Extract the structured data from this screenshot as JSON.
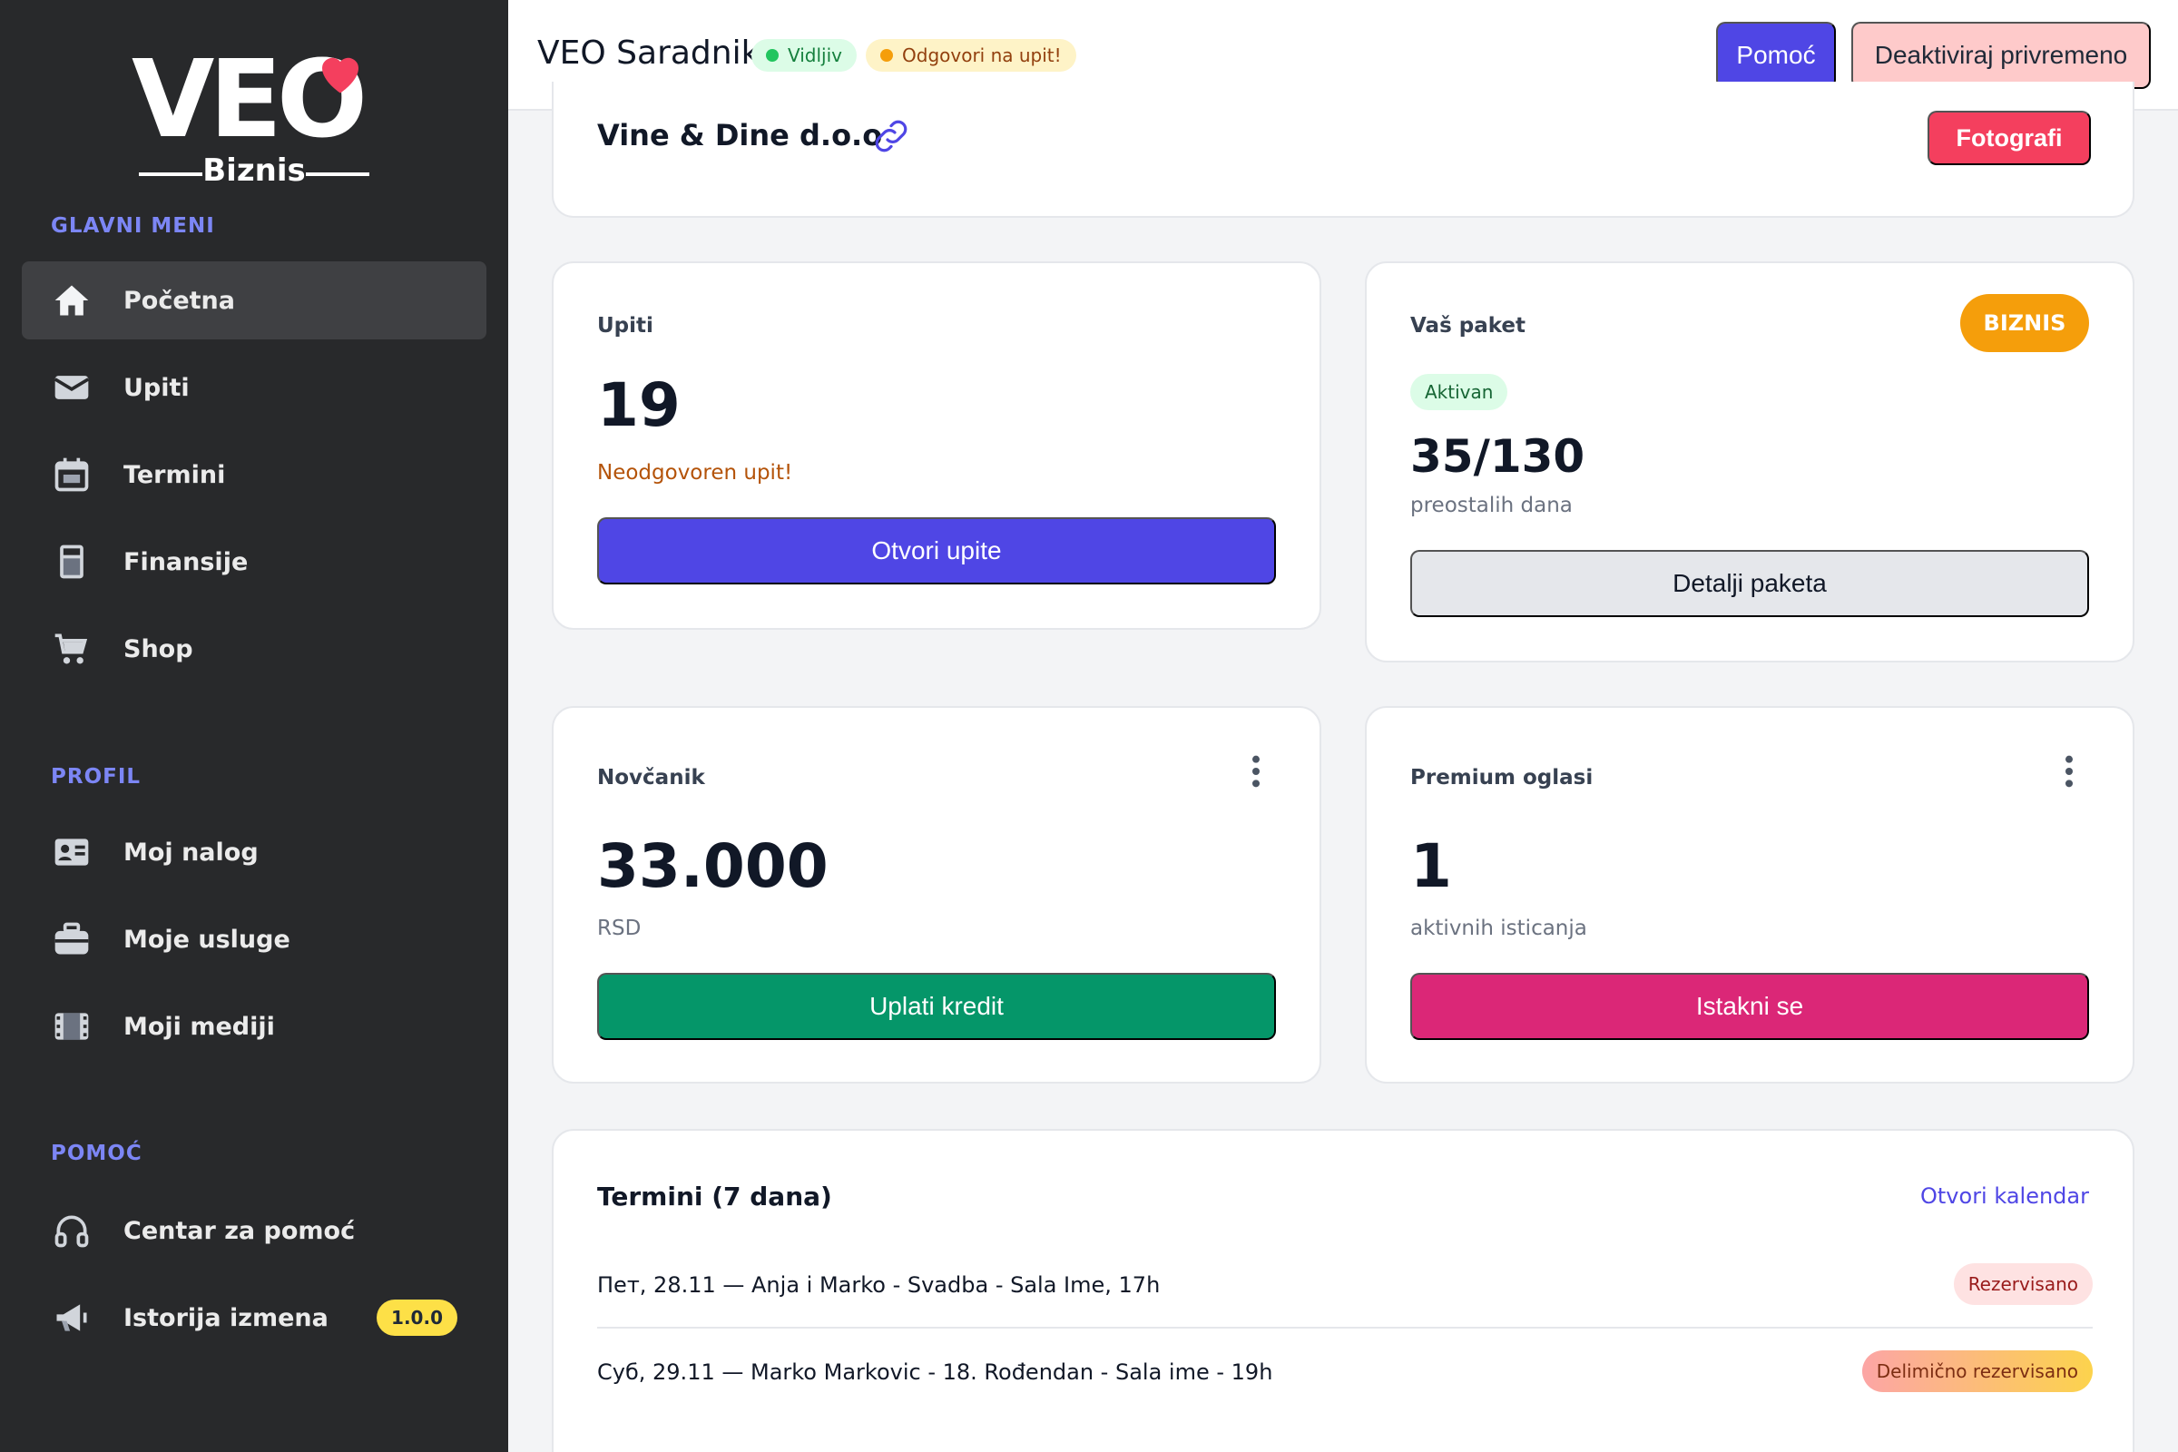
{
  "brand": {
    "logo_text": "VEO",
    "logo_sub": "Biznis",
    "heart_color": "#f43f5e"
  },
  "sidebar": {
    "sections": [
      {
        "title": "GLAVNI MENI"
      },
      {
        "title": "PROFIL"
      },
      {
        "title": "POMOĆ"
      }
    ],
    "main_items": [
      {
        "label": "Početna",
        "icon": "home-icon"
      },
      {
        "label": "Upiti",
        "icon": "envelope-icon"
      },
      {
        "label": "Termini",
        "icon": "calendar-icon"
      },
      {
        "label": "Finansije",
        "icon": "calculator-icon"
      },
      {
        "label": "Shop",
        "icon": "cart-icon"
      }
    ],
    "profile_items": [
      {
        "label": "Moj nalog",
        "icon": "id-card-icon"
      },
      {
        "label": "Moje usluge",
        "icon": "briefcase-icon"
      },
      {
        "label": "Moji mediji",
        "icon": "film-icon"
      }
    ],
    "help_items": [
      {
        "label": "Centar za pomoć",
        "icon": "headphones-icon"
      },
      {
        "label": "Istorija izmena",
        "icon": "megaphone-icon",
        "badge": "1.0.0"
      }
    ]
  },
  "header": {
    "title": "VEO Saradnik",
    "visible_pill": "Vidljiv",
    "pending_pill": "Odgovori na upit!",
    "help_button": "Pomoć",
    "deactivate_button": "Deaktiviraj privremeno"
  },
  "company": {
    "name": "Vine & Dine d.o.o",
    "photos_button": "Fotografi"
  },
  "inquiries": {
    "label": "Upiti",
    "count": "19",
    "warning": "Neodgovoren upit!",
    "button": "Otvori upite"
  },
  "package": {
    "label": "Vaš paket",
    "tier": "BIZNIS",
    "status": "Aktivan",
    "days": "35/130",
    "days_caption": "preostalih dana",
    "button": "Detalji paketa"
  },
  "wallet": {
    "label": "Novčanik",
    "amount": "33.000",
    "currency": "RSD",
    "button": "Uplati kredit"
  },
  "premium": {
    "label": "Premium oglasi",
    "count": "1",
    "caption": "aktivnih isticanja",
    "button": "Istakni se"
  },
  "schedule": {
    "title": "Termini (7 dana)",
    "calendar_link": "Otvori kalendar",
    "events": [
      {
        "text": "Пет, 28.11 — Anja i Marko - Svadba - Sala Ime, 17h",
        "status": "Rezervisano"
      },
      {
        "text": "Суб, 29.11 — Marko Markovic - 18. Rođendan - Sala ime - 19h",
        "status": "Delimično rezervisano"
      }
    ]
  },
  "colors": {
    "primary": "#4f46e5",
    "green": "#059669",
    "pink": "#db2777",
    "amber": "#f59e0b",
    "rose": "#f43f5e"
  }
}
